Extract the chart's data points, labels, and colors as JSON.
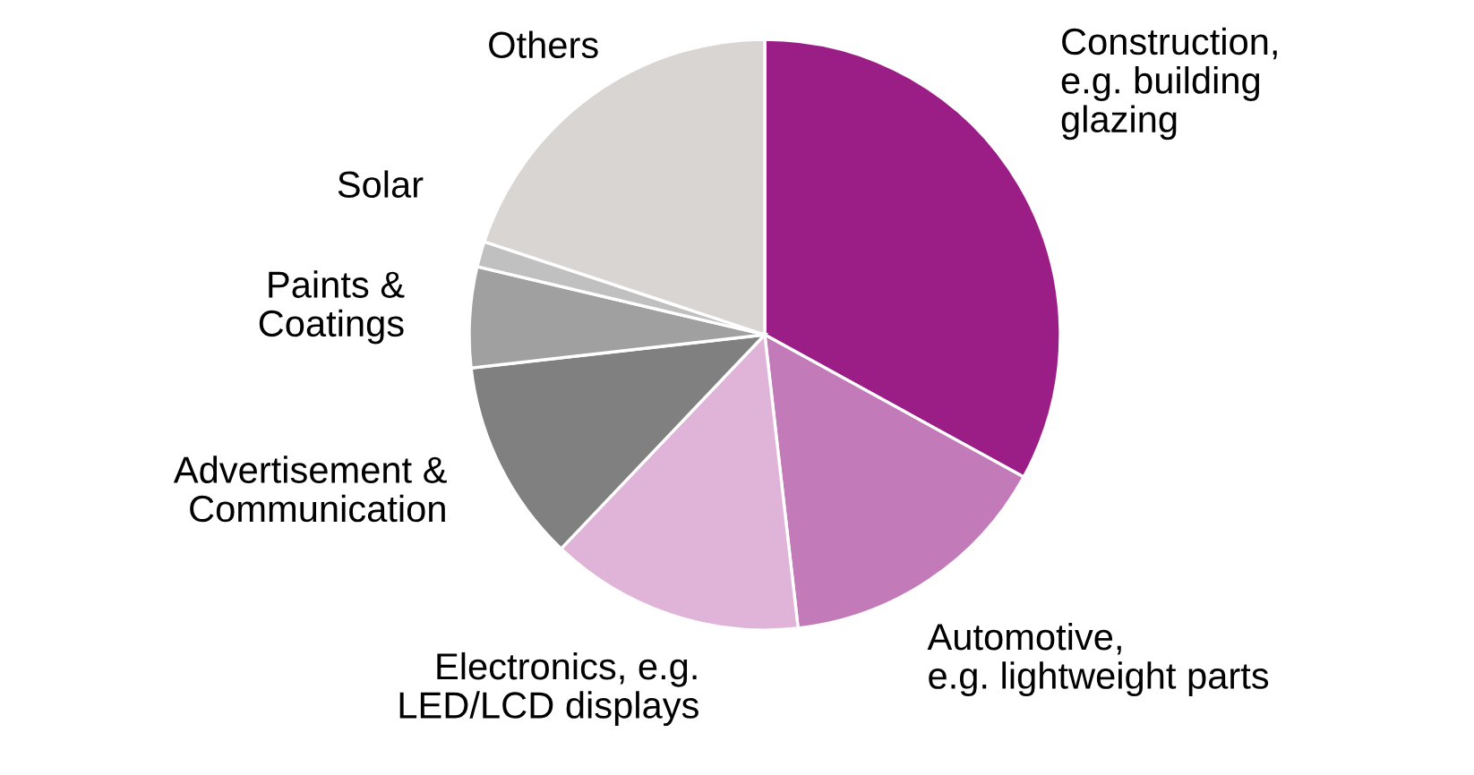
{
  "chart_data": {
    "type": "pie",
    "categories": [
      "Construction,\ne.g. building\nglazing",
      "Automotive,\ne.g. lightweight parts",
      "Electronics, e.g.\nLED/LCD displays",
      "Advertisement &\nCommunication",
      "Paints &\nCoatings",
      "Solar",
      "Others"
    ],
    "values": [
      33,
      15.2,
      13.9,
      11.1,
      5.5,
      1.4,
      19.9
    ],
    "colors": [
      "#9b1e87",
      "#c27bb8",
      "#dfb4d8",
      "#808080",
      "#a0a0a0",
      "#c0c0c0",
      "#d9d5d2"
    ],
    "legend": false
  }
}
